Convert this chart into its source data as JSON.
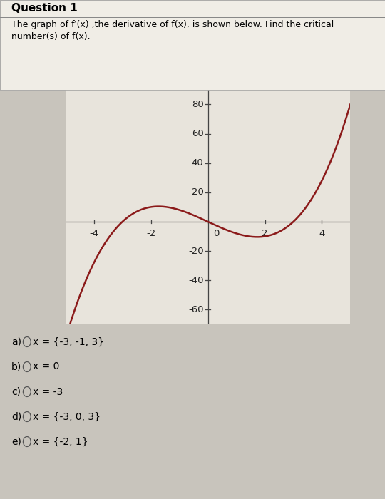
{
  "curve_color": "#8B1A1A",
  "graph_bg": "#E8E4DC",
  "outer_bg": "#C8C4BC",
  "xlim": [
    -5,
    5
  ],
  "ylim": [
    -70,
    95
  ],
  "xticks": [
    -4,
    -2,
    0,
    2,
    4
  ],
  "yticks": [
    -60,
    -40,
    -20,
    20,
    40,
    60,
    80
  ],
  "title": "Question 1",
  "line1": "The graph of f′(x) ,the derivative of f(x), is shown below. Find the critical",
  "line2": "number(s) of f(x).",
  "choices_letters": [
    "a)",
    "b)",
    "c)",
    "d)",
    "e)"
  ],
  "choices_text": [
    "x = {-3, -1, 3}",
    "x = 0",
    "x = -3",
    "x = {-3, 0, 3}",
    "x = {-2, 1}"
  ]
}
